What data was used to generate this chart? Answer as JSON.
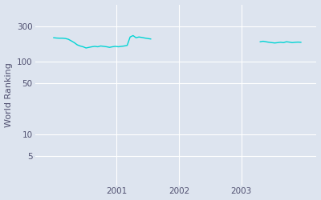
{
  "ylabel": "World Ranking",
  "line_color": "#00d4d4",
  "bg_color": "#dde4ef",
  "fig_bg_color": "#dde4ef",
  "grid_color": "#ffffff",
  "segment1": {
    "x_start": 2000.0,
    "x_end": 2001.55,
    "y_values": [
      210,
      208,
      207,
      207,
      205,
      200,
      190,
      180,
      168,
      162,
      158,
      152,
      155,
      158,
      160,
      158,
      162,
      160,
      158,
      155,
      158,
      160,
      158,
      160,
      162,
      165,
      215,
      225,
      210,
      215,
      212,
      208,
      205,
      202
    ]
  },
  "segment2": {
    "x_start": 2003.3,
    "x_end": 2003.95,
    "y_values": [
      185,
      188,
      185,
      182,
      180,
      178,
      180,
      182,
      180,
      185,
      183,
      180,
      182,
      183,
      182
    ]
  },
  "yticks": [
    5,
    10,
    50,
    100,
    300
  ],
  "xticks": [
    2001,
    2002,
    2003
  ],
  "xlim": [
    1999.7,
    2004.2
  ],
  "ylim": [
    2,
    600
  ],
  "ylabel_fontsize": 8,
  "tick_fontsize": 7.5,
  "tick_color": "#505070",
  "linewidth": 1.0
}
